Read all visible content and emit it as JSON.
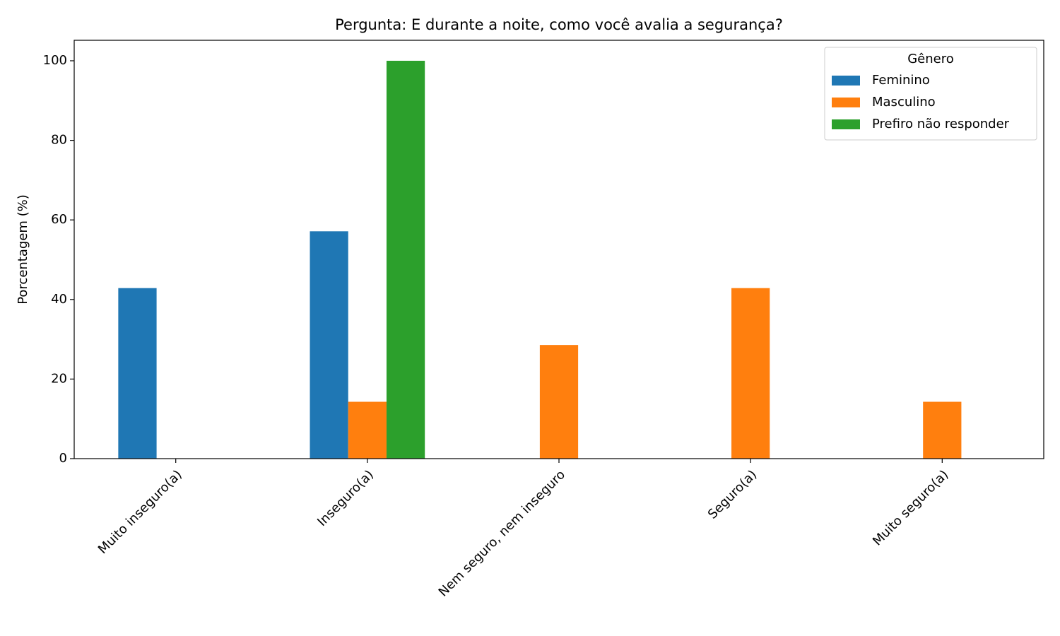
{
  "chart_data": {
    "type": "bar",
    "title": "Pergunta: E durante a noite, como você avalia a segurança?",
    "y_label": "Porcentagem (%)",
    "categories": [
      "Muito inseguro(a)",
      "Inseguro(a)",
      "Nem seguro, nem inseguro",
      "Seguro(a)",
      "Muito seguro(a)"
    ],
    "series": [
      {
        "name": "Feminino",
        "color": "#1f77b4",
        "values": [
          42.86,
          57.14,
          0,
          0,
          0
        ]
      },
      {
        "name": "Masculino",
        "color": "#ff7f0e",
        "values": [
          0,
          14.29,
          28.57,
          42.86,
          14.29
        ]
      },
      {
        "name": "Prefiro não responder",
        "color": "#2ca02c",
        "values": [
          0,
          100,
          0,
          0,
          0
        ]
      }
    ],
    "legend_title": "Gênero",
    "legend": "upper right",
    "ylim": [
      0,
      105.15
    ],
    "yticks": [
      0,
      20,
      40,
      60,
      80,
      100
    ],
    "grid": false
  }
}
